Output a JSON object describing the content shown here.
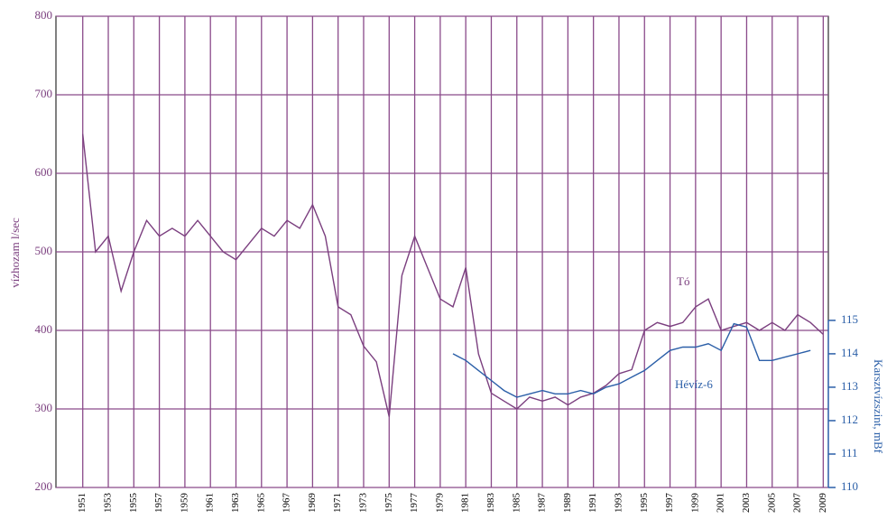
{
  "chart_data": {
    "type": "line",
    "y_label": "vízhozam l/sec",
    "y2_label": "Karsztvízszint, mBf",
    "x": [
      1951,
      1952,
      1953,
      1954,
      1955,
      1956,
      1957,
      1958,
      1959,
      1960,
      1961,
      1962,
      1963,
      1964,
      1965,
      1966,
      1967,
      1968,
      1969,
      1970,
      1971,
      1972,
      1973,
      1974,
      1975,
      1976,
      1977,
      1978,
      1979,
      1980,
      1981,
      1982,
      1983,
      1984,
      1985,
      1986,
      1987,
      1988,
      1989,
      1990,
      1991,
      1992,
      1993,
      1994,
      1995,
      1996,
      1997,
      1998,
      1999,
      2000,
      2001,
      2002,
      2003,
      2004,
      2005,
      2006,
      2007,
      2008,
      2009
    ],
    "series": [
      {
        "name": "Tó",
        "color": "#7b3f7f",
        "values": [
          650,
          500,
          520,
          450,
          500,
          540,
          520,
          530,
          520,
          540,
          520,
          500,
          490,
          510,
          530,
          520,
          540,
          530,
          560,
          520,
          430,
          420,
          380,
          360,
          290,
          470,
          520,
          480,
          440,
          430,
          480,
          370,
          320,
          310,
          300,
          315,
          310,
          315,
          305,
          315,
          320,
          330,
          345,
          350,
          400,
          410,
          405,
          410,
          430,
          440,
          400,
          405,
          410,
          400,
          410,
          400,
          420,
          410,
          395
        ]
      },
      {
        "name": "Hévíz-6",
        "color": "#2b5fa8",
        "axis": "y2",
        "values": [
          null,
          null,
          null,
          null,
          null,
          null,
          null,
          null,
          null,
          null,
          null,
          null,
          null,
          null,
          null,
          null,
          null,
          null,
          null,
          null,
          null,
          null,
          null,
          null,
          null,
          null,
          null,
          null,
          null,
          114.0,
          113.8,
          113.5,
          113.2,
          112.9,
          112.7,
          112.8,
          112.9,
          112.8,
          112.8,
          112.9,
          112.8,
          113.0,
          113.1,
          113.3,
          113.5,
          113.8,
          114.1,
          114.2,
          114.2,
          114.3,
          114.1,
          114.9,
          114.8,
          113.8,
          113.8,
          113.9,
          114.0,
          114.1,
          null
        ]
      }
    ],
    "xlim": [
      1948.9,
      2009.4
    ],
    "xticks": [
      1951,
      1953,
      1955,
      1957,
      1959,
      1961,
      1963,
      1965,
      1967,
      1969,
      1971,
      1973,
      1975,
      1977,
      1979,
      1981,
      1983,
      1985,
      1987,
      1989,
      1991,
      1993,
      1995,
      1997,
      1999,
      2001,
      2003,
      2005,
      2007,
      2009
    ],
    "ylim": [
      200,
      800
    ],
    "yticks": [
      200,
      300,
      400,
      500,
      600,
      700,
      800
    ],
    "y2lim": [
      110,
      124.1
    ],
    "y2ticks": [
      110,
      111,
      112,
      113,
      114,
      115
    ],
    "grid": true
  }
}
